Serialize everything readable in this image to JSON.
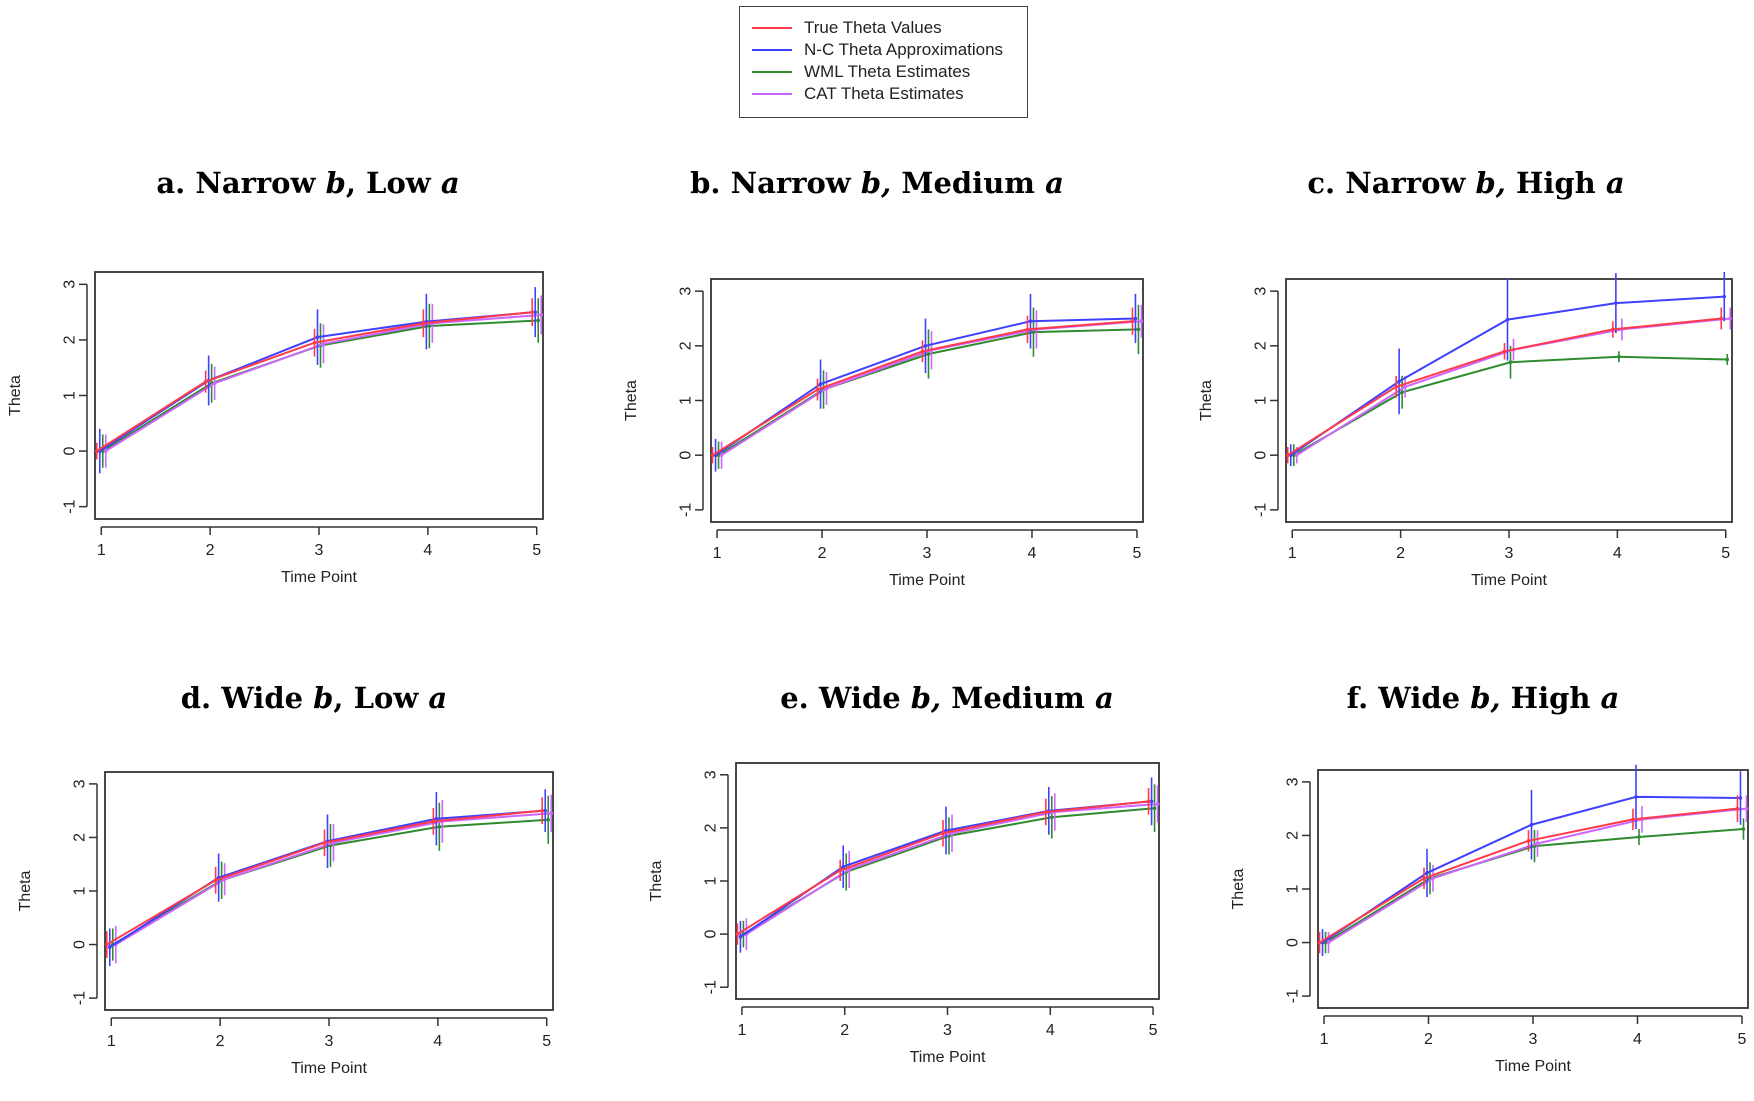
{
  "legend": {
    "items": [
      {
        "label": "True Theta Values",
        "color": "#ff3a4a"
      },
      {
        "label": "N-C Theta Approximations",
        "color": "#4040ff"
      },
      {
        "label": "WML Theta Estimates",
        "color": "#2e8b2e"
      },
      {
        "label": "CAT Theta Estimates",
        "color": "#cc66ff"
      }
    ]
  },
  "panels": [
    {
      "prefix": "a. Narrow ",
      "b": "b",
      "mid": ", Low ",
      "a": "a"
    },
    {
      "prefix": "b. Narrow ",
      "b": "b,",
      "mid": " Medium ",
      "a": "a"
    },
    {
      "prefix": "c. Narrow ",
      "b": "b,",
      "mid": " High ",
      "a": "a"
    },
    {
      "prefix": "d. Wide ",
      "b": "b",
      "mid": ", Low ",
      "a": "a"
    },
    {
      "prefix": "e. Wide ",
      "b": "b,",
      "mid": " Medium ",
      "a": "a"
    },
    {
      "prefix": "f. Wide ",
      "b": "b,",
      "mid": " High ",
      "a": "a"
    }
  ],
  "chart_data": [
    {
      "type": "line",
      "xlabel": "Time Point",
      "ylabel": "Theta",
      "x": [
        1,
        2,
        3,
        4,
        5
      ],
      "ylim": [
        -1,
        3
      ],
      "series": [
        {
          "name": "True Theta Values",
          "color": "#ff3a4a",
          "values": [
            0.0,
            1.25,
            1.95,
            2.3,
            2.5
          ],
          "err": [
            0.15,
            0.2,
            0.25,
            0.25,
            0.25
          ]
        },
        {
          "name": "N-C Theta Approximations",
          "color": "#4040ff",
          "values": [
            0.0,
            1.27,
            2.05,
            2.33,
            2.5
          ],
          "err": [
            0.4,
            0.45,
            0.5,
            0.5,
            0.45
          ]
        },
        {
          "name": "WML Theta Estimates",
          "color": "#2e8b2e",
          "values": [
            0.0,
            1.22,
            1.9,
            2.25,
            2.35
          ],
          "err": [
            0.3,
            0.35,
            0.4,
            0.4,
            0.4
          ]
        },
        {
          "name": "CAT Theta Estimates",
          "color": "#cc66ff",
          "values": [
            0.0,
            1.22,
            1.93,
            2.3,
            2.45
          ],
          "err": [
            0.3,
            0.3,
            0.35,
            0.35,
            0.35
          ]
        }
      ]
    },
    {
      "type": "line",
      "xlabel": "Time Point",
      "ylabel": "Theta",
      "x": [
        1,
        2,
        3,
        4,
        5
      ],
      "ylim": [
        -1,
        3
      ],
      "series": [
        {
          "name": "True Theta Values",
          "color": "#ff3a4a",
          "values": [
            0.0,
            1.2,
            1.9,
            2.3,
            2.45
          ],
          "err": [
            0.15,
            0.2,
            0.2,
            0.25,
            0.25
          ]
        },
        {
          "name": "N-C Theta Approximations",
          "color": "#4040ff",
          "values": [
            0.0,
            1.3,
            2.0,
            2.45,
            2.5
          ],
          "err": [
            0.3,
            0.45,
            0.5,
            0.5,
            0.45
          ]
        },
        {
          "name": "WML Theta Estimates",
          "color": "#2e8b2e",
          "values": [
            0.0,
            1.2,
            1.85,
            2.25,
            2.3
          ],
          "err": [
            0.25,
            0.35,
            0.45,
            0.45,
            0.45
          ]
        },
        {
          "name": "CAT Theta Estimates",
          "color": "#cc66ff",
          "values": [
            0.0,
            1.22,
            1.92,
            2.3,
            2.45
          ],
          "err": [
            0.25,
            0.3,
            0.35,
            0.35,
            0.3
          ]
        }
      ]
    },
    {
      "type": "line",
      "xlabel": "Time Point",
      "ylabel": "Theta",
      "x": [
        1,
        2,
        3,
        4,
        5
      ],
      "ylim": [
        -1,
        3
      ],
      "series": [
        {
          "name": "True Theta Values",
          "color": "#ff3a4a",
          "values": [
            0.0,
            1.25,
            1.9,
            2.3,
            2.5
          ],
          "err": [
            0.15,
            0.2,
            0.15,
            0.15,
            0.2
          ]
        },
        {
          "name": "N-C Theta Approximations",
          "color": "#4040ff",
          "values": [
            0.0,
            1.35,
            2.48,
            2.78,
            2.9
          ],
          "err": [
            0.2,
            0.6,
            0.75,
            0.55,
            0.45
          ]
        },
        {
          "name": "WML Theta Estimates",
          "color": "#2e8b2e",
          "values": [
            0.0,
            1.15,
            1.7,
            1.8,
            1.75
          ],
          "err": [
            0.2,
            0.3,
            0.3,
            0.1,
            0.1
          ]
        },
        {
          "name": "CAT Theta Estimates",
          "color": "#cc66ff",
          "values": [
            0.0,
            1.25,
            1.93,
            2.3,
            2.5
          ],
          "err": [
            0.15,
            0.2,
            0.2,
            0.2,
            0.2
          ]
        }
      ]
    },
    {
      "type": "line",
      "xlabel": "Time Point",
      "ylabel": "Theta",
      "x": [
        1,
        2,
        3,
        4,
        5
      ],
      "ylim": [
        -1,
        3
      ],
      "series": [
        {
          "name": "True Theta Values",
          "color": "#ff3a4a",
          "values": [
            0.0,
            1.2,
            1.9,
            2.3,
            2.5
          ],
          "err": [
            0.25,
            0.25,
            0.25,
            0.25,
            0.25
          ]
        },
        {
          "name": "N-C Theta Approximations",
          "color": "#4040ff",
          "values": [
            -0.05,
            1.25,
            1.93,
            2.35,
            2.5
          ],
          "err": [
            0.35,
            0.45,
            0.5,
            0.5,
            0.4
          ]
        },
        {
          "name": "WML Theta Estimates",
          "color": "#2e8b2e",
          "values": [
            0.0,
            1.2,
            1.85,
            2.2,
            2.33
          ],
          "err": [
            0.3,
            0.35,
            0.4,
            0.45,
            0.45
          ]
        },
        {
          "name": "CAT Theta Estimates",
          "color": "#cc66ff",
          "values": [
            0.0,
            1.22,
            1.9,
            2.3,
            2.45
          ],
          "err": [
            0.35,
            0.3,
            0.35,
            0.4,
            0.35
          ]
        }
      ]
    },
    {
      "type": "line",
      "xlabel": "Time Point",
      "ylabel": "Theta",
      "x": [
        1,
        2,
        3,
        4,
        5
      ],
      "ylim": [
        -1,
        3
      ],
      "series": [
        {
          "name": "True Theta Values",
          "color": "#ff3a4a",
          "values": [
            0.0,
            1.2,
            1.9,
            2.3,
            2.5
          ],
          "err": [
            0.2,
            0.2,
            0.25,
            0.25,
            0.25
          ]
        },
        {
          "name": "N-C Theta Approximations",
          "color": "#4040ff",
          "values": [
            -0.05,
            1.27,
            1.95,
            2.32,
            2.5
          ],
          "err": [
            0.3,
            0.4,
            0.45,
            0.45,
            0.45
          ]
        },
        {
          "name": "WML Theta Estimates",
          "color": "#2e8b2e",
          "values": [
            0.0,
            1.17,
            1.85,
            2.2,
            2.37
          ],
          "err": [
            0.25,
            0.35,
            0.35,
            0.4,
            0.45
          ]
        },
        {
          "name": "CAT Theta Estimates",
          "color": "#cc66ff",
          "values": [
            0.0,
            1.22,
            1.9,
            2.3,
            2.45
          ],
          "err": [
            0.3,
            0.35,
            0.35,
            0.35,
            0.35
          ]
        }
      ]
    },
    {
      "type": "line",
      "xlabel": "Time Point",
      "ylabel": "Theta",
      "x": [
        1,
        2,
        3,
        4,
        5
      ],
      "ylim": [
        -1,
        3
      ],
      "series": [
        {
          "name": "True Theta Values",
          "color": "#ff3a4a",
          "values": [
            0.0,
            1.2,
            1.9,
            2.3,
            2.5
          ],
          "err": [
            0.2,
            0.2,
            0.2,
            0.2,
            0.25
          ]
        },
        {
          "name": "N-C Theta Approximations",
          "color": "#4040ff",
          "values": [
            0.0,
            1.3,
            2.2,
            2.72,
            2.7
          ],
          "err": [
            0.25,
            0.45,
            0.65,
            0.6,
            0.5
          ]
        },
        {
          "name": "WML Theta Estimates",
          "color": "#2e8b2e",
          "values": [
            0.0,
            1.2,
            1.8,
            1.97,
            2.12
          ],
          "err": [
            0.2,
            0.3,
            0.3,
            0.15,
            0.2
          ]
        },
        {
          "name": "CAT Theta Estimates",
          "color": "#cc66ff",
          "values": [
            0.0,
            1.2,
            1.85,
            2.3,
            2.5
          ],
          "err": [
            0.2,
            0.25,
            0.25,
            0.25,
            0.25
          ]
        }
      ]
    }
  ]
}
